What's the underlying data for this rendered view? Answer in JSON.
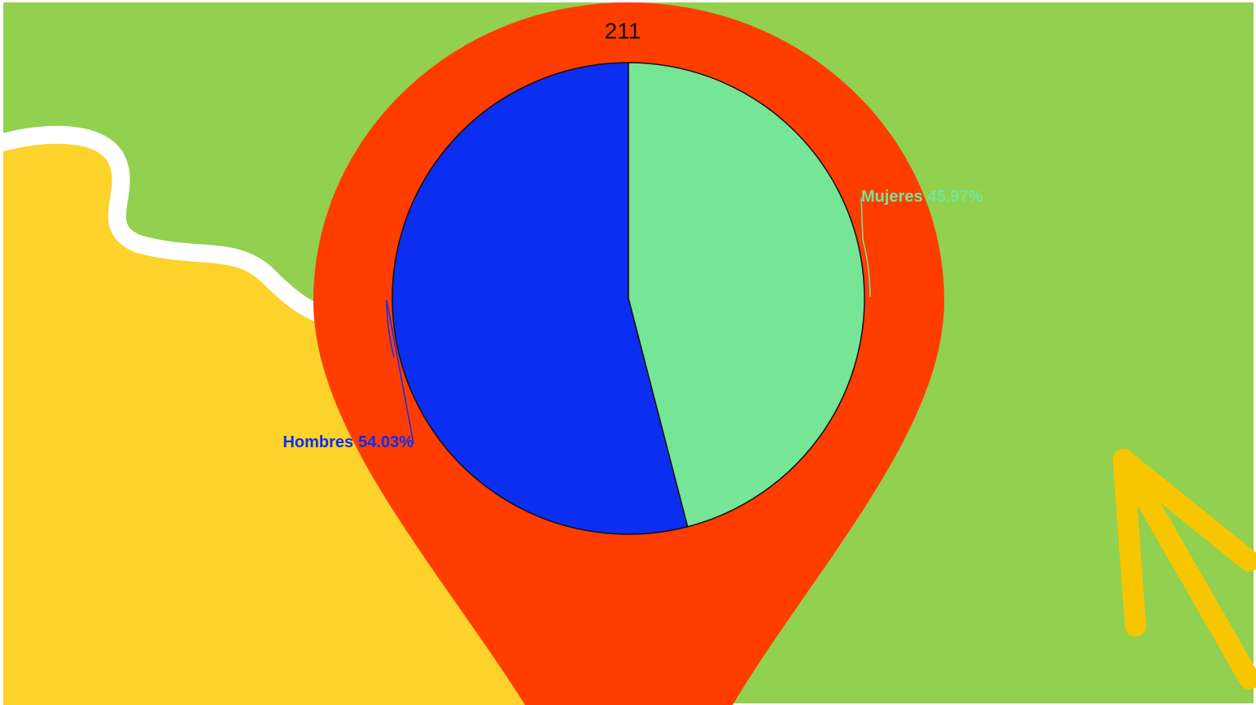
{
  "chart_data": {
    "type": "pie",
    "title": "211",
    "categories": [
      "Mujeres",
      "Hombres"
    ],
    "values": [
      45.97,
      54.03
    ],
    "value_labels": [
      "45.97%",
      "54.03%"
    ],
    "colors": [
      "#76e596",
      "#0b2ef0"
    ]
  }
}
